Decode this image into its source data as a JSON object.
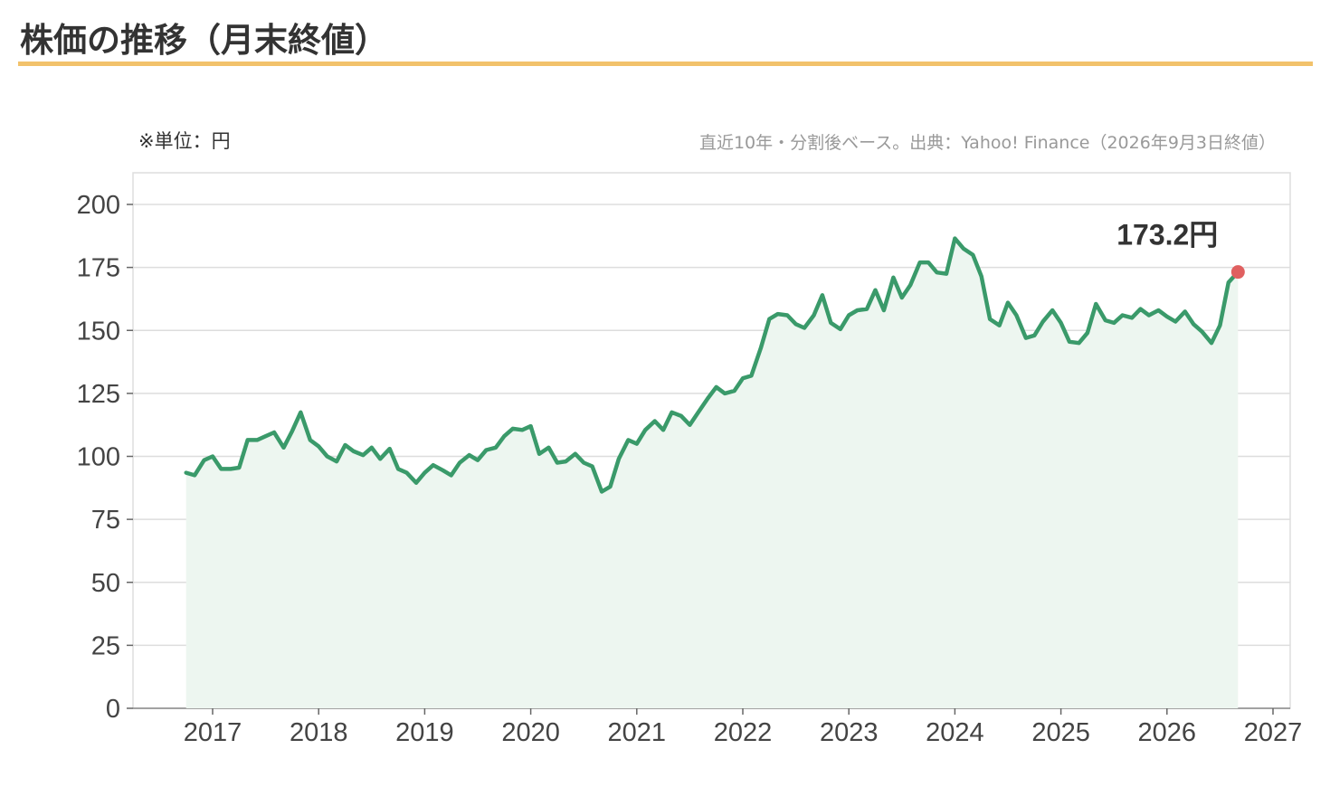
{
  "header": {
    "title": "株価の推移（月末終値）"
  },
  "notes": {
    "unit": "※単位：円",
    "source": "直近10年・分割後ベース。出典：Yahoo! Finance（2026年9月3日終値）"
  },
  "colors": {
    "accent_rule": "#f2c26b",
    "line": "#3a9a6a",
    "area_fill": "#edf6f0",
    "last_point": "#e06060",
    "grid": "#dddddd"
  },
  "chart_data": {
    "type": "area",
    "title": "",
    "xlabel": "",
    "ylabel": "",
    "ylim": [
      0,
      200
    ],
    "yticks": [
      0,
      25,
      50,
      75,
      100,
      125,
      150,
      175,
      200
    ],
    "xlim": [
      2016.5,
      2027
    ],
    "xticks": [
      2017,
      2018,
      2019,
      2020,
      2021,
      2022,
      2023,
      2024,
      2025,
      2026,
      2027
    ],
    "grid": true,
    "last_label": "173.2円",
    "series": [
      {
        "x": [
          2016.75,
          2016.83,
          2016.92,
          2017.0,
          2017.08,
          2017.17,
          2017.25,
          2017.33,
          2017.42,
          2017.5,
          2017.58,
          2017.67,
          2017.75,
          2017.83,
          2017.92,
          2018.0,
          2018.08,
          2018.17,
          2018.25,
          2018.33,
          2018.42,
          2018.5,
          2018.58,
          2018.67,
          2018.75,
          2018.83,
          2018.92,
          2019.0,
          2019.08,
          2019.17,
          2019.25,
          2019.33,
          2019.42,
          2019.5,
          2019.58,
          2019.67,
          2019.75,
          2019.83,
          2019.92,
          2020.0,
          2020.08,
          2020.17,
          2020.25,
          2020.33,
          2020.42,
          2020.5,
          2020.58,
          2020.67,
          2020.75,
          2020.83,
          2020.92,
          2021.0,
          2021.08,
          2021.17,
          2021.25,
          2021.33,
          2021.42,
          2021.5,
          2021.58,
          2021.67,
          2021.75,
          2021.83,
          2021.92,
          2022.0,
          2022.08,
          2022.17,
          2022.25,
          2022.33,
          2022.42,
          2022.5,
          2022.58,
          2022.67,
          2022.75,
          2022.83,
          2022.92,
          2023.0,
          2023.08,
          2023.17,
          2023.25,
          2023.33,
          2023.42,
          2023.5,
          2023.58,
          2023.67,
          2023.75,
          2023.83,
          2023.92,
          2024.0,
          2024.08,
          2024.17,
          2024.25,
          2024.33,
          2024.42,
          2024.5,
          2024.58,
          2024.67,
          2024.75,
          2024.83,
          2024.92,
          2025.0,
          2025.08,
          2025.17,
          2025.25,
          2025.33,
          2025.42,
          2025.5,
          2025.58,
          2025.67,
          2025.75,
          2025.83,
          2025.92,
          2026.0,
          2026.08,
          2026.17,
          2026.25,
          2026.33,
          2026.42,
          2026.5,
          2026.58,
          2026.67
        ],
        "values": [
          93.5,
          92.5,
          98.5,
          100,
          95,
          95,
          95.5,
          106.5,
          106.5,
          108,
          109.5,
          103.5,
          110,
          117.5,
          106.5,
          104,
          100,
          98,
          104.5,
          102,
          100.5,
          103.5,
          99,
          103,
          95,
          93.5,
          89.5,
          93.5,
          96.5,
          94.5,
          92.5,
          97.5,
          100.5,
          98.5,
          102.5,
          103.5,
          108,
          111,
          110.5,
          112,
          101,
          103.5,
          97.5,
          98,
          101,
          97.5,
          96,
          86,
          88,
          99,
          106.5,
          105,
          110.5,
          114,
          110.5,
          117.5,
          116,
          112.5,
          117.5,
          123,
          127.5,
          125,
          126,
          131,
          132,
          143,
          154.5,
          156.5,
          156,
          152.5,
          151,
          156,
          164,
          153,
          150.5,
          156,
          158,
          158.5,
          166,
          158,
          171,
          163,
          168,
          177,
          177,
          173,
          172.5,
          186.5,
          182.5,
          180,
          171.5,
          154.5,
          152,
          161,
          156,
          147,
          148,
          153.5,
          158,
          153,
          145.5,
          145,
          149,
          160.5,
          154,
          153,
          156,
          155,
          158.5,
          156,
          158,
          155.5,
          153.5,
          157.5,
          152.5,
          149.5,
          145,
          152,
          169,
          173.2
        ]
      }
    ]
  }
}
